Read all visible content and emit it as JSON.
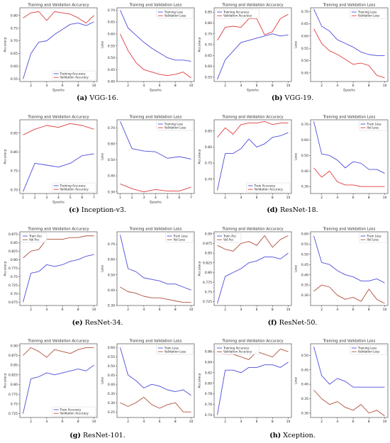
{
  "rows": [
    {
      "caption_left": {
        "tag": "(a)",
        "name": "VGG-16."
      },
      "caption_right": {
        "tag": "(b)",
        "name": "VGG-19."
      }
    },
    {
      "caption_left": {
        "tag": "(c)",
        "name": "Inception-v3."
      },
      "caption_right": {
        "tag": "(d)",
        "name": "ResNet-18."
      }
    },
    {
      "caption_left": {
        "tag": "(e)",
        "name": "ResNet-34."
      },
      "caption_right": {
        "tag": "(f)",
        "name": "ResNet-50."
      }
    },
    {
      "caption_left": {
        "tag": "(g)",
        "name": "ResNet-101."
      },
      "caption_right": {
        "tag": "(h)",
        "name": "Xception."
      }
    }
  ],
  "colors": {
    "train": "#4c4cdc",
    "val": "#e03c3c",
    "val_dark": "#b0503c"
  },
  "chart_data": [
    {
      "type": "line",
      "id": "vgg16-acc",
      "title": "Training and Validation Accuracy",
      "xlabel": "Epochs",
      "ylabel": "Accuracy",
      "x": [
        1,
        2,
        3,
        4,
        5,
        6,
        7,
        8,
        9,
        10
      ],
      "xticks": [
        2,
        4,
        6,
        8,
        10
      ],
      "ylim": [
        0.54,
        0.83
      ],
      "yticks": [
        0.55,
        0.6,
        0.65,
        0.7,
        0.75,
        0.8
      ],
      "legend": "bottom-right",
      "val_color": "val",
      "series": [
        {
          "name": "Training Accuracy",
          "values": [
            0.55,
            0.65,
            0.695,
            0.7,
            0.725,
            0.745,
            0.765,
            0.77,
            0.76,
            0.775
          ]
        },
        {
          "name": "Validation Accuracy",
          "values": [
            0.79,
            0.81,
            0.815,
            0.78,
            0.815,
            0.81,
            0.805,
            0.79,
            0.77,
            0.8
          ]
        }
      ]
    },
    {
      "type": "line",
      "id": "vgg16-loss",
      "title": "Training and Validation Loss",
      "xlabel": "Epochs",
      "ylabel": "Loss",
      "x": [
        1,
        2,
        3,
        4,
        5,
        6,
        7,
        8,
        9,
        10
      ],
      "xticks": [
        2,
        4,
        6,
        8,
        10
      ],
      "ylim": [
        0.4,
        0.71
      ],
      "yticks": [
        0.4,
        0.45,
        0.5,
        0.55,
        0.6,
        0.65,
        0.7
      ],
      "legend": "top-right",
      "val_color": "val",
      "series": [
        {
          "name": "Training Loss",
          "values": [
            0.7,
            0.625,
            0.595,
            0.565,
            0.54,
            0.52,
            0.5,
            0.49,
            0.49,
            0.485
          ]
        },
        {
          "name": "Validation Loss",
          "values": [
            0.6,
            0.53,
            0.48,
            0.45,
            0.44,
            0.43,
            0.425,
            0.43,
            0.44,
            0.415
          ]
        }
      ]
    },
    {
      "type": "line",
      "id": "vgg19-acc",
      "title": "Training and Validation Accuracy",
      "xlabel": "Epochs",
      "ylabel": "Accuracy",
      "x": [
        1,
        2,
        3,
        4,
        5,
        6,
        7,
        8,
        9,
        10
      ],
      "xticks": [
        2,
        4,
        6,
        8,
        10
      ],
      "ylim": [
        0.53,
        0.87
      ],
      "yticks": [
        0.55,
        0.6,
        0.65,
        0.7,
        0.75,
        0.8,
        0.85
      ],
      "legend": "top-left",
      "val_color": "val",
      "series": [
        {
          "name": "Training Accuracy",
          "values": [
            0.54,
            0.63,
            0.67,
            0.71,
            0.72,
            0.73,
            0.74,
            0.75,
            0.74,
            0.745
          ]
        },
        {
          "name": "Validation Accuracy",
          "values": [
            0.72,
            0.78,
            0.785,
            0.78,
            0.82,
            0.82,
            0.745,
            0.76,
            0.82,
            0.84
          ]
        }
      ]
    },
    {
      "type": "line",
      "id": "vgg19-loss",
      "title": "Training and Validation Loss",
      "xlabel": "Epochs",
      "ylabel": "Loss",
      "x": [
        1,
        2,
        3,
        4,
        5,
        6,
        7,
        8,
        9,
        10
      ],
      "xticks": [
        2,
        4,
        6,
        8,
        10
      ],
      "ylim": [
        0.415,
        0.715
      ],
      "yticks": [
        0.45,
        0.5,
        0.55,
        0.6,
        0.65,
        0.7
      ],
      "legend": "top-right",
      "val_color": "val",
      "series": [
        {
          "name": "Training Loss",
          "values": [
            0.71,
            0.64,
            0.62,
            0.585,
            0.57,
            0.555,
            0.535,
            0.525,
            0.52,
            0.52
          ]
        },
        {
          "name": "Validation Loss",
          "values": [
            0.63,
            0.57,
            0.54,
            0.525,
            0.505,
            0.485,
            0.49,
            0.48,
            0.44,
            0.43
          ]
        }
      ]
    },
    {
      "type": "line",
      "id": "incv3-acc",
      "title": "Training and Validation Accuracy",
      "xlabel": "Epochs",
      "ylabel": "Accuracy",
      "x": [
        1,
        2,
        3,
        4,
        5,
        6,
        7
      ],
      "xticks": [
        1,
        2,
        3,
        4,
        5,
        6,
        7
      ],
      "ylim": [
        0.69,
        0.885
      ],
      "yticks": [
        0.7,
        0.75,
        0.8,
        0.85
      ],
      "legend": "bottom-right",
      "val_color": "val",
      "series": [
        {
          "name": "Training Accuracy",
          "values": [
            0.695,
            0.77,
            0.765,
            0.76,
            0.77,
            0.79,
            0.795
          ]
        },
        {
          "name": "Validation Accuracy",
          "values": [
            0.845,
            0.86,
            0.87,
            0.865,
            0.875,
            0.87,
            0.86
          ]
        }
      ]
    },
    {
      "type": "line",
      "id": "incv3-loss",
      "title": "Training and Validation Loss",
      "xlabel": "Epochs",
      "ylabel": "Loss",
      "x": [
        1,
        2,
        3,
        4,
        5,
        6,
        7
      ],
      "xticks": [
        1,
        2,
        3,
        4,
        5,
        6,
        7
      ],
      "ylim": [
        0.29,
        0.75
      ],
      "yticks": [
        0.3,
        0.4,
        0.5,
        0.6,
        0.7
      ],
      "legend": "top-right",
      "val_color": "val",
      "series": [
        {
          "name": "Training Loss",
          "values": [
            0.74,
            0.57,
            0.555,
            0.55,
            0.51,
            0.52,
            0.505
          ]
        },
        {
          "name": "Validation Loss",
          "values": [
            0.35,
            0.32,
            0.3,
            0.315,
            0.305,
            0.305,
            0.33
          ]
        }
      ]
    },
    {
      "type": "line",
      "id": "r18-acc",
      "title": "Training and Validation Accuracy",
      "xlabel": "",
      "ylabel": "Accuracy",
      "x": [
        1,
        2,
        3,
        4,
        5,
        6,
        7,
        8,
        9,
        10
      ],
      "xticks": [
        2,
        4,
        6,
        8,
        10
      ],
      "ylim": [
        0.655,
        0.885
      ],
      "yticks": [
        0.7,
        0.75,
        0.8,
        0.85
      ],
      "legend": "bottom-right",
      "val_color": "val",
      "series": [
        {
          "name": "Train Accuracy",
          "values": [
            0.665,
            0.78,
            0.78,
            0.795,
            0.825,
            0.8,
            0.81,
            0.83,
            0.835,
            0.845
          ]
        },
        {
          "name": "Validation Accuracy",
          "values": [
            0.83,
            0.86,
            0.84,
            0.87,
            0.875,
            0.875,
            0.88,
            0.87,
            0.875,
            0.875
          ]
        }
      ]
    },
    {
      "type": "line",
      "id": "r18-loss",
      "title": "Training and Validation Loss",
      "xlabel": "",
      "ylabel": "Loss",
      "x": [
        1,
        2,
        3,
        4,
        5,
        6,
        7,
        8,
        9,
        10
      ],
      "xticks": [
        2,
        4,
        6,
        8,
        10
      ],
      "ylim": [
        0.255,
        0.73
      ],
      "yticks": [
        0.3,
        0.4,
        0.5,
        0.6,
        0.7
      ],
      "legend": "top-right",
      "val_color": "val",
      "series": [
        {
          "name": "Train Loss",
          "values": [
            0.72,
            0.51,
            0.5,
            0.47,
            0.42,
            0.46,
            0.45,
            0.41,
            0.41,
            0.385
          ]
        },
        {
          "name": "Val Loss",
          "values": [
            0.42,
            0.36,
            0.4,
            0.33,
            0.31,
            0.31,
            0.3,
            0.3,
            0.3,
            0.3
          ]
        }
      ]
    },
    {
      "type": "line",
      "id": "r34-acc",
      "title": "Training and Validation Accuracy",
      "xlabel": "",
      "ylabel": "Accuracy",
      "x": [
        1,
        2,
        3,
        4,
        5,
        6,
        7,
        8,
        9,
        10
      ],
      "xticks": [
        2,
        4,
        6,
        8,
        10
      ],
      "ylim": [
        0.665,
        0.882
      ],
      "yticks": [
        0.675,
        0.7,
        0.725,
        0.75,
        0.775,
        0.8,
        0.825,
        0.85,
        0.875
      ],
      "legend": "top-left",
      "val_color": "val_dark",
      "series": [
        {
          "name": "Train Acc",
          "values": [
            0.675,
            0.76,
            0.765,
            0.785,
            0.78,
            0.785,
            0.795,
            0.8,
            0.81,
            0.815
          ]
        },
        {
          "name": "Val Acc",
          "values": [
            0.805,
            0.825,
            0.83,
            0.86,
            0.86,
            0.86,
            0.865,
            0.865,
            0.87,
            0.87
          ]
        }
      ]
    },
    {
      "type": "line",
      "id": "r34-loss",
      "title": "Training and Validation Loss",
      "xlabel": "",
      "ylabel": "Loss",
      "x": [
        1,
        2,
        3,
        4,
        5,
        6,
        7,
        8,
        9,
        10
      ],
      "xticks": [
        2,
        4,
        6,
        8,
        10
      ],
      "ylim": [
        0.3,
        0.78
      ],
      "yticks": [
        0.3,
        0.4,
        0.5,
        0.6,
        0.7
      ],
      "legend": "top-right",
      "val_color": "val_dark",
      "series": [
        {
          "name": "Train Loss",
          "values": [
            0.76,
            0.54,
            0.52,
            0.48,
            0.47,
            0.46,
            0.44,
            0.44,
            0.42,
            0.4
          ]
        },
        {
          "name": "Val Loss",
          "values": [
            0.42,
            0.39,
            0.38,
            0.36,
            0.35,
            0.35,
            0.34,
            0.33,
            0.32,
            0.32
          ]
        }
      ]
    },
    {
      "type": "line",
      "id": "r50-acc",
      "title": "Training and Validation Accuracy",
      "xlabel": "",
      "ylabel": "Accuracy",
      "x": [
        1,
        2,
        3,
        4,
        5,
        6,
        7,
        8,
        9,
        10
      ],
      "xticks": [
        2,
        4,
        6,
        8,
        10
      ],
      "ylim": [
        0.715,
        0.905
      ],
      "yticks": [
        0.725,
        0.75,
        0.775,
        0.8,
        0.825,
        0.85,
        0.875,
        0.9
      ],
      "legend": "top-left",
      "val_color": "val_dark",
      "series": [
        {
          "name": "Train Acc",
          "values": [
            0.72,
            0.79,
            0.8,
            0.81,
            0.825,
            0.83,
            0.84,
            0.84,
            0.835,
            0.85
          ]
        },
        {
          "name": "Val Acc",
          "values": [
            0.87,
            0.86,
            0.855,
            0.875,
            0.88,
            0.87,
            0.895,
            0.865,
            0.885,
            0.895
          ]
        }
      ]
    },
    {
      "type": "line",
      "id": "r50-loss",
      "title": "Training and Validation Loss",
      "xlabel": "",
      "ylabel": "Loss",
      "x": [
        1,
        2,
        3,
        4,
        5,
        6,
        7,
        8,
        9,
        10
      ],
      "xticks": [
        2,
        4,
        6,
        8,
        10
      ],
      "ylim": [
        0.25,
        0.61
      ],
      "yticks": [
        0.3,
        0.35,
        0.4,
        0.45,
        0.5,
        0.55,
        0.6
      ],
      "legend": "top-right",
      "val_color": "val_dark",
      "series": [
        {
          "name": "Train Loss",
          "values": [
            0.59,
            0.46,
            0.45,
            0.42,
            0.4,
            0.39,
            0.37,
            0.37,
            0.38,
            0.36
          ]
        },
        {
          "name": "Val Loss",
          "values": [
            0.32,
            0.35,
            0.34,
            0.3,
            0.28,
            0.29,
            0.27,
            0.33,
            0.28,
            0.26
          ]
        }
      ]
    },
    {
      "type": "line",
      "id": "r101-acc",
      "title": "Training and Validation Accuracy",
      "xlabel": "",
      "ylabel": "Accuracy",
      "x": [
        1,
        2,
        3,
        4,
        5,
        6,
        7,
        8,
        9,
        10
      ],
      "xticks": [
        2,
        4,
        6,
        8,
        10
      ],
      "ylim": [
        0.715,
        0.905
      ],
      "yticks": [
        0.725,
        0.75,
        0.775,
        0.8,
        0.825,
        0.85,
        0.875,
        0.9
      ],
      "legend": "bottom-right",
      "val_color": "val_dark",
      "series": [
        {
          "name": "Train Accuracy",
          "values": [
            0.725,
            0.815,
            0.82,
            0.83,
            0.825,
            0.83,
            0.835,
            0.84,
            0.835,
            0.85
          ]
        },
        {
          "name": "Validation Accuracy",
          "values": [
            0.875,
            0.895,
            0.885,
            0.87,
            0.89,
            0.885,
            0.88,
            0.89,
            0.895,
            0.895
          ]
        }
      ]
    },
    {
      "type": "line",
      "id": "r101-loss",
      "title": "Training and Validation Loss",
      "xlabel": "",
      "ylabel": "Loss",
      "x": [
        1,
        2,
        3,
        4,
        5,
        6,
        7,
        8,
        9,
        10
      ],
      "xticks": [
        2,
        4,
        6,
        8,
        10
      ],
      "ylim": [
        0.22,
        0.62
      ],
      "yticks": [
        0.25,
        0.3,
        0.35,
        0.4,
        0.45,
        0.5,
        0.55,
        0.6
      ],
      "legend": "top-right",
      "val_color": "val_dark",
      "series": [
        {
          "name": "Train Loss",
          "values": [
            0.6,
            0.45,
            0.42,
            0.38,
            0.4,
            0.39,
            0.37,
            0.36,
            0.37,
            0.34
          ]
        },
        {
          "name": "Validation Loss",
          "values": [
            0.3,
            0.28,
            0.3,
            0.33,
            0.29,
            0.27,
            0.29,
            0.3,
            0.25,
            0.25
          ]
        }
      ]
    },
    {
      "type": "line",
      "id": "xce-acc",
      "title": "Training and Validation Accuracy",
      "xlabel": "",
      "ylabel": "Accuracy",
      "x": [
        1,
        2,
        3,
        4,
        5,
        6,
        7,
        8,
        9,
        10
      ],
      "xticks": [
        2,
        4,
        6,
        8,
        10
      ],
      "ylim": [
        0.735,
        0.875
      ],
      "yticks": [
        0.74,
        0.76,
        0.78,
        0.8,
        0.82,
        0.84,
        0.86
      ],
      "legend": "top-left",
      "val_color": "val_dark",
      "series": [
        {
          "name": "Training Accuracy",
          "values": [
            0.74,
            0.825,
            0.825,
            0.82,
            0.83,
            0.83,
            0.835,
            0.835,
            0.83,
            0.84
          ]
        },
        {
          "name": "Validation Accuracy",
          "values": [
            0.86,
            0.855,
            0.855,
            0.85,
            0.845,
            0.86,
            0.855,
            0.85,
            0.865,
            0.86
          ]
        }
      ]
    },
    {
      "type": "line",
      "id": "xce-loss",
      "title": "Training and Validation Loss",
      "xlabel": "",
      "ylabel": "Loss",
      "x": [
        1,
        2,
        3,
        4,
        5,
        6,
        7,
        8,
        9,
        10
      ],
      "xticks": [
        2,
        4,
        6,
        8,
        10
      ],
      "ylim": [
        0.285,
        0.54
      ],
      "yticks": [
        0.3,
        0.35,
        0.4,
        0.45,
        0.5
      ],
      "legend": "top-right",
      "val_color": "val_dark",
      "series": [
        {
          "name": "Training Loss",
          "values": [
            0.53,
            0.43,
            0.4,
            0.42,
            0.41,
            0.39,
            0.39,
            0.39,
            0.39,
            0.39
          ]
        },
        {
          "name": "Validation Loss",
          "values": [
            0.38,
            0.35,
            0.33,
            0.34,
            0.32,
            0.31,
            0.33,
            0.3,
            0.31,
            0.29
          ]
        }
      ]
    }
  ]
}
